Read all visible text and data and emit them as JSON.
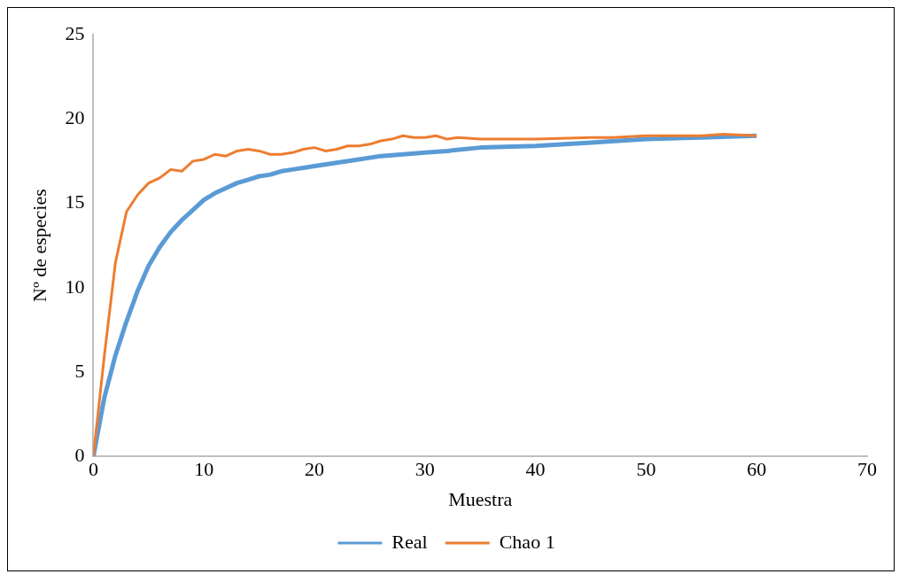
{
  "chart_data": {
    "type": "line",
    "xlabel": "Muestra",
    "ylabel": "Nº de especies",
    "xlim": [
      0,
      70
    ],
    "xticks": [
      0,
      10,
      20,
      30,
      40,
      50,
      60,
      70
    ],
    "ylim": [
      0,
      25
    ],
    "yticks": [
      0,
      5,
      10,
      15,
      20,
      25
    ],
    "grid": false,
    "legend": "bottom",
    "marker": "none",
    "line_style": "solid",
    "series": [
      {
        "name": "Real",
        "color": "#5b9bd5",
        "x": [
          0,
          1,
          2,
          3,
          4,
          5,
          6,
          7,
          8,
          9,
          10,
          11,
          12,
          13,
          14,
          15,
          16,
          17,
          18,
          19,
          20,
          22,
          24,
          26,
          28,
          30,
          32,
          35,
          40,
          45,
          50,
          55,
          60
        ],
        "values": [
          0,
          3.5,
          6,
          8,
          9.8,
          11.3,
          12.4,
          13.3,
          14,
          14.6,
          15.2,
          15.6,
          15.9,
          16.2,
          16.4,
          16.6,
          16.7,
          16.9,
          17,
          17.1,
          17.2,
          17.4,
          17.6,
          17.8,
          17.9,
          18,
          18.1,
          18.3,
          18.4,
          18.6,
          18.8,
          18.9,
          19
        ]
      },
      {
        "name": "Chao 1",
        "color": "#ed7d31",
        "x": [
          0,
          1,
          2,
          3,
          4,
          5,
          6,
          7,
          8,
          9,
          10,
          11,
          12,
          13,
          14,
          15,
          16,
          17,
          18,
          19,
          20,
          21,
          22,
          23,
          24,
          25,
          26,
          27,
          28,
          29,
          30,
          31,
          32,
          33,
          35,
          40,
          45,
          47,
          50,
          55,
          57,
          60
        ],
        "values": [
          0,
          6,
          11.5,
          14.5,
          15.5,
          16.2,
          16.5,
          17,
          16.9,
          17.5,
          17.6,
          17.9,
          17.8,
          18.1,
          18.2,
          18.1,
          17.9,
          17.9,
          18,
          18.2,
          18.3,
          18.1,
          18.2,
          18.4,
          18.4,
          18.5,
          18.7,
          18.8,
          19,
          18.9,
          18.9,
          19,
          18.8,
          18.9,
          18.8,
          18.8,
          18.9,
          18.9,
          19,
          19,
          19.1,
          19
        ]
      }
    ]
  }
}
